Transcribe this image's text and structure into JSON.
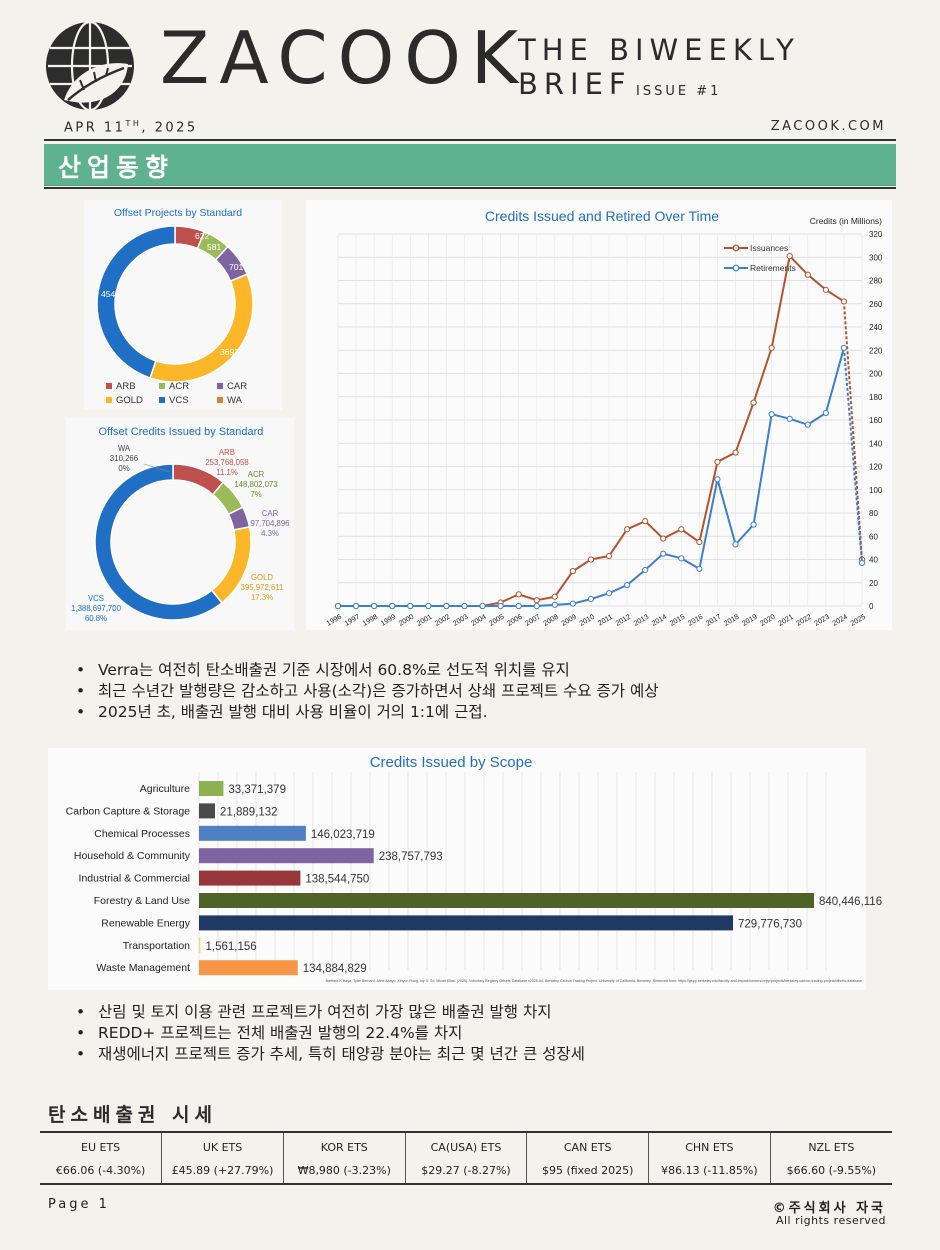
{
  "header": {
    "brand": "ZACOOK",
    "brief_line1": "THE BIWEEKLY",
    "brief_line2": "BRIEF",
    "issue": "ISSUE #1",
    "date_prefix": "APR 11",
    "date_sup": "TH",
    "date_suffix": ", 2025",
    "site": "ZACOOK.COM",
    "logo_icon": "globe-leaf-icon"
  },
  "section": {
    "title": "산업동향"
  },
  "donut_projects": {
    "title": "Offset Projects by Standard",
    "labels": [
      "622",
      "581",
      "701",
      "3692",
      "4546"
    ],
    "legend": [
      "ARB",
      "ACR",
      "CAR",
      "GOLD",
      "VCS",
      "WA"
    ]
  },
  "donut_credits": {
    "title": "Offset Credits Issued by Standard",
    "labels": {
      "wa": [
        "WA",
        "310,266",
        "0%"
      ],
      "arb": [
        "ARB",
        "253,768,058",
        "11.1%"
      ],
      "acr": [
        "ACR",
        "148,802,073",
        "7%"
      ],
      "car": [
        "CAR",
        "97,704,896",
        "4.3%"
      ],
      "gold": [
        "GOLD",
        "395,972,611",
        "17.3%"
      ],
      "vcs": [
        "VCS",
        "1,388,697,700",
        "60.8%"
      ]
    }
  },
  "chart_data": [
    {
      "type": "pie",
      "title": "Offset Projects by Standard",
      "categories": [
        "ARB",
        "ACR",
        "CAR",
        "GOLD",
        "VCS",
        "WA"
      ],
      "values": [
        622,
        581,
        701,
        3692,
        4546,
        0
      ],
      "colors": [
        "#c0504d",
        "#9bbb59",
        "#8064a2",
        "#fbb728",
        "#1f6fc5",
        "#e07b39"
      ],
      "legend": "bottom"
    },
    {
      "type": "pie",
      "title": "Offset Credits Issued by Standard",
      "categories": [
        "WA",
        "ARB",
        "ACR",
        "CAR",
        "GOLD",
        "VCS"
      ],
      "values": [
        310266,
        253768058,
        148802073,
        97704896,
        395972611,
        1388697700
      ],
      "colors": [
        "#e07b39",
        "#c0504d",
        "#9bbb59",
        "#8064a2",
        "#fbb728",
        "#1f6fc5"
      ]
    },
    {
      "type": "line",
      "title": "Credits Issued and Retired Over Time",
      "ylabel": "Credits (in Millions)",
      "ylim": [
        0,
        320
      ],
      "yticks": [
        0,
        20,
        40,
        60,
        80,
        100,
        120,
        140,
        160,
        180,
        200,
        220,
        240,
        260,
        280,
        300,
        320
      ],
      "x": [
        "1996",
        "1997",
        "1998",
        "1999",
        "2000",
        "2001",
        "2002",
        "2003",
        "2004",
        "2005",
        "2006",
        "2007",
        "2008",
        "2009",
        "2010",
        "2011",
        "2012",
        "2013",
        "2014",
        "2015",
        "2016",
        "2017",
        "2018",
        "2019",
        "2020",
        "2021",
        "2022",
        "2023",
        "2024",
        "2025"
      ],
      "series": [
        {
          "name": "Issuances",
          "color": "#b5532d",
          "values": [
            0,
            0,
            0,
            0,
            0,
            0,
            0,
            0,
            0,
            3,
            10,
            5,
            8,
            30,
            40,
            43,
            66,
            73,
            58,
            66,
            55,
            124,
            132,
            175,
            222,
            301,
            285,
            272,
            262,
            40
          ]
        },
        {
          "name": "Retirements",
          "color": "#3c7fd1",
          "values": [
            0,
            0,
            0,
            0,
            0,
            0,
            0,
            0,
            0,
            0,
            0,
            0,
            1,
            2,
            6,
            11,
            18,
            31,
            45,
            41,
            32,
            109,
            53,
            70,
            165,
            161,
            156,
            166,
            222,
            37
          ]
        }
      ],
      "legend": "top-left",
      "grid": true
    },
    {
      "type": "bar",
      "orientation": "horizontal",
      "title": "Credits Issued by Scope",
      "categories": [
        "Agriculture",
        "Carbon Capture & Storage",
        "Chemical Processes",
        "Household & Community",
        "Industrial & Commercial",
        "Forestry & Land Use",
        "Renewable Energy",
        "Transportation",
        "Waste Management"
      ],
      "values": [
        33371379,
        21889132,
        146023719,
        238757793,
        138544750,
        840446116,
        729776730,
        1561156,
        134884829
      ],
      "labels": [
        "33,371,379",
        "21,889,132",
        "146,023,719",
        "238,757,793",
        "138,544,750",
        "840,446,116",
        "729,776,730",
        "1,561,156",
        "134,884,829"
      ],
      "colors": [
        "#8db14f",
        "#4a4a4a",
        "#4f7fc0",
        "#8064a2",
        "#96383a",
        "#4f6228",
        "#1f3864",
        "#f5d76e",
        "#f79646"
      ],
      "grid": true
    }
  ],
  "bar_source": "Barbara K Haya, Tyler Bernard, Aline Abayo, Xinyun Rong, Ivy S. So, Micah Elias. (2025). Voluntary Registry Offsets Database v2025-04, Berkeley Carbon Trading Project, University of California, Berkeley. Retrieved from: https://gspp.berkeley.edu/faculty-and-impact/centers/cepp/projects/berkeley-carbon-trading-project/offsets-database",
  "bullets1": [
    "Verra는 여전히 탄소배출권 기준 시장에서 60.8%로 선도적 위치를 유지",
    "최근 수년간 발행량은 감소하고 사용(소각)은 증가하면서 상쇄 프로젝트 수요 증가 예상",
    "2025년 초, 배출권 발행 대비 사용 비율이 거의 1:1에 근접."
  ],
  "bullets2": [
    "산림 및 토지 이용 관련 프로젝트가 여전히 가장 많은 배출권 발행 차지",
    "REDD+ 프로젝트는 전체 배출권 발행의 22.4%를 차지",
    "재생에너지 프로젝트 증가 추세, 특히 태양광 분야는 최근 몇 년간 큰 성장세"
  ],
  "market": {
    "title": "탄소배출권  시세",
    "names": [
      "EU ETS",
      "UK ETS",
      "KOR ETS",
      "CA(USA) ETS",
      "CAN ETS",
      "CHN ETS",
      "NZL ETS"
    ],
    "prices": [
      "€66.06 (-4.30%)",
      "£45.89  (+27.79%)",
      "₩8,980 (-3.23%)",
      "$29.27 (-8.27%)",
      "$95 (fixed 2025)",
      "¥86.13 (-11.85%)",
      "$66.60 (-9.55%)"
    ]
  },
  "footer": {
    "page": "Page 1",
    "copyright": "©주식회사 자국",
    "rights": "All rights reserved"
  }
}
